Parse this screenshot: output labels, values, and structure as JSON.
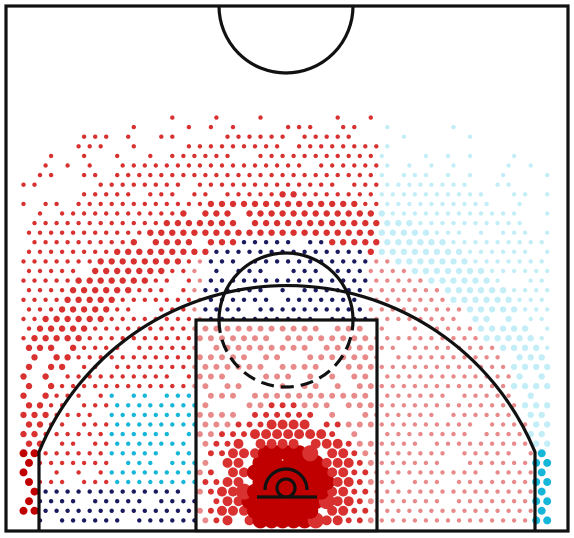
{
  "chart_data": {
    "type": "scatter",
    "subtype": "hexbin-shot-chart",
    "title": "",
    "xlabel": "",
    "ylabel": "",
    "grid": false,
    "legend": "none",
    "colors": {
      "dark_red": "#c00000",
      "red": "#d93030",
      "light_red": "#e88a8a",
      "dark_navy": "#1a1a5e",
      "cyan": "#16b6d8",
      "light_cyan": "#c4eef7",
      "court_lines": "#111111",
      "background": "#ffffff"
    },
    "regions": [
      {
        "name": "restricted-area",
        "color_group": "dark_red",
        "frequency": 1.0,
        "sample_points": [
          {
            "x": 0,
            "y": 3
          },
          {
            "x": -1,
            "y": 4
          },
          {
            "x": 1,
            "y": 4
          }
        ]
      },
      {
        "name": "paint-low",
        "color_group": "red",
        "frequency": 0.6,
        "sample_points": [
          {
            "x": -2,
            "y": 6
          },
          {
            "x": 2,
            "y": 6
          }
        ]
      },
      {
        "name": "paint-upper",
        "color_group": "light_red",
        "frequency": 0.25,
        "sample_points": [
          {
            "x": 0,
            "y": 14
          }
        ]
      },
      {
        "name": "left-midrange-baseline",
        "color_group": "cyan",
        "frequency": 0.3,
        "sample_points": [
          {
            "x": -12,
            "y": 8
          }
        ]
      },
      {
        "name": "top-of-key-inside-arc",
        "color_group": "dark_navy",
        "frequency": 0.2,
        "sample_points": [
          {
            "x": 0,
            "y": 22
          }
        ]
      },
      {
        "name": "left-wing-three",
        "color_group": "red",
        "frequency": 0.45,
        "sample_points": [
          {
            "x": -18,
            "y": 22
          }
        ]
      },
      {
        "name": "top-three",
        "color_group": "red",
        "frequency": 0.4,
        "sample_points": [
          {
            "x": 0,
            "y": 33
          }
        ]
      },
      {
        "name": "right-wing-three",
        "color_group": "light_cyan",
        "frequency": 0.35,
        "sample_points": [
          {
            "x": 18,
            "y": 26
          }
        ]
      },
      {
        "name": "left-corner-three",
        "color_group": "dark_red",
        "frequency": 0.45,
        "sample_points": [
          {
            "x": -23,
            "y": 4
          }
        ]
      },
      {
        "name": "right-corner-three",
        "color_group": "cyan",
        "frequency": 0.45,
        "sample_points": [
          {
            "x": 23,
            "y": 4
          }
        ]
      }
    ]
  }
}
